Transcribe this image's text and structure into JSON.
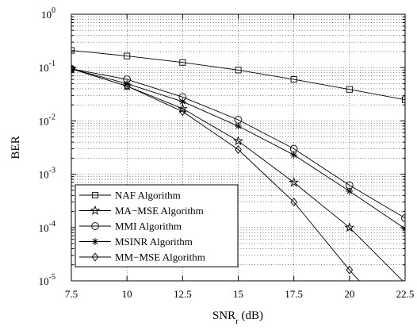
{
  "chart_data": {
    "type": "line",
    "title": "",
    "xlabel": "SNR",
    "xlabel_sub": "r",
    "xlabel_unit": " (dB)",
    "ylabel": "BER",
    "xlim": [
      7.5,
      22.5
    ],
    "ylim": [
      1e-05,
      1
    ],
    "yscale": "log",
    "grid": true,
    "legend_position": "bottom-left",
    "x_ticks": [
      7.5,
      10,
      12.5,
      15,
      17.5,
      20,
      22.5
    ],
    "x_tick_labels": [
      "7.5",
      "10",
      "12.5",
      "15",
      "17.5",
      "20",
      "22.5"
    ],
    "y_ticks": [
      1e-05,
      0.0001,
      0.001,
      0.01,
      0.1,
      1
    ],
    "y_tick_labels": [
      {
        "base": "10",
        "exp": "-5"
      },
      {
        "base": "10",
        "exp": "-4"
      },
      {
        "base": "10",
        "exp": "-3"
      },
      {
        "base": "10",
        "exp": "-2"
      },
      {
        "base": "10",
        "exp": "-1"
      },
      {
        "base": "10",
        "exp": "0"
      }
    ],
    "series": [
      {
        "name": "NAF Algorithm",
        "marker": "square",
        "x": [
          7.5,
          10,
          12.5,
          15,
          17.5,
          20,
          22.5
        ],
        "y": [
          0.21,
          0.165,
          0.125,
          0.09,
          0.06,
          0.039,
          0.025
        ]
      },
      {
        "name": "MA−MSE Algorithm",
        "marker": "pentagram",
        "x": [
          7.5,
          10,
          12.5,
          15,
          17.5,
          20,
          22.5
        ],
        "y": [
          0.095,
          0.045,
          0.017,
          0.0042,
          0.0007,
          0.0001,
          9e-06
        ]
      },
      {
        "name": "MMI Algorithm",
        "marker": "circle",
        "x": [
          7.5,
          10,
          12.5,
          15,
          17.5,
          20,
          22.5
        ],
        "y": [
          0.095,
          0.06,
          0.028,
          0.0105,
          0.003,
          0.00062,
          0.00015
        ]
      },
      {
        "name": "MSINR Algorithm",
        "marker": "asterisk",
        "x": [
          7.5,
          10,
          12.5,
          15,
          17.5,
          20,
          22.5
        ],
        "y": [
          0.095,
          0.05,
          0.023,
          0.008,
          0.0023,
          0.00048,
          9.5e-05
        ]
      },
      {
        "name": "MM−MSE Algorithm",
        "marker": "diamond",
        "x": [
          7.5,
          10,
          12.5,
          15,
          17.5,
          20,
          22.5
        ],
        "y": [
          0.095,
          0.045,
          0.015,
          0.0029,
          0.0003,
          1.6e-05,
          1.1e-06
        ]
      }
    ]
  }
}
